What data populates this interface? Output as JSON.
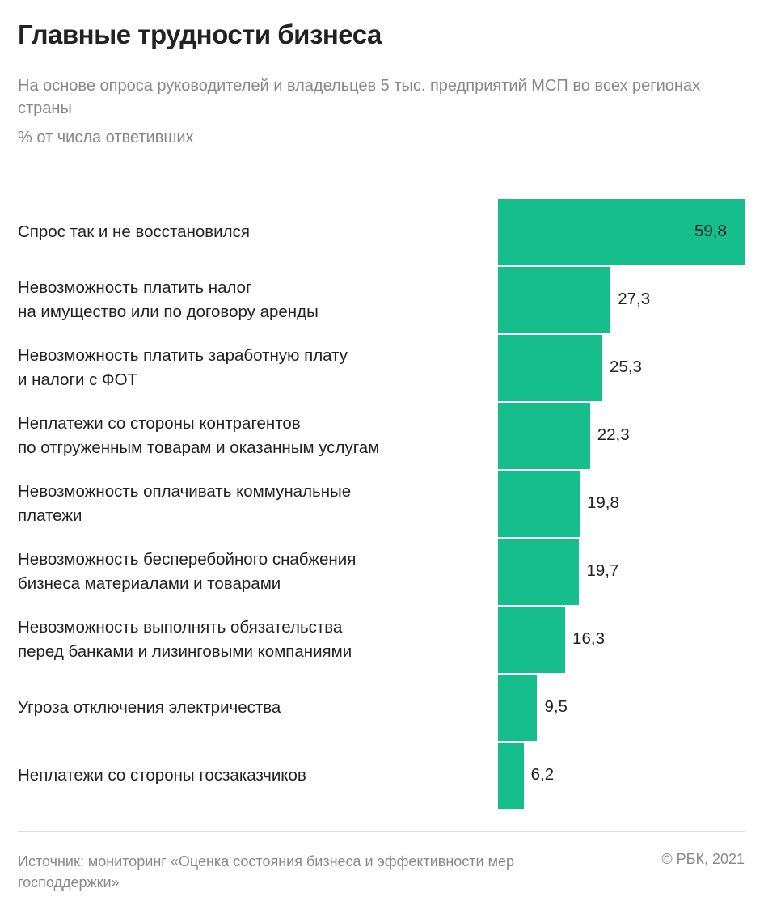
{
  "title": "Главные трудности бизнеса",
  "subtitle": "На основе опроса руководителей и владельцев 5 тыс. предприятий МСП во всех регионах страны",
  "unit": "% от числа ответивших",
  "source": "Источник: мониторинг «Оценка состояния бизнеса и эффективности мер господдержки»",
  "copyright": "© РБК, 2021",
  "colors": {
    "bar": "#15be8a"
  },
  "chart_data": {
    "type": "bar",
    "orientation": "horizontal",
    "title": "Главные трудности бизнеса",
    "xlabel": "% от числа ответивших",
    "xlim": [
      0,
      59.8
    ],
    "categories": [
      "Спрос так и не восстановился",
      "Невозможность платить налог\nна имущество или по договору аренды",
      "Невозможность платить заработную плату\nи налоги с ФОТ",
      "Неплатежи со стороны контрагентов\nпо отгруженным товарам и оказанным услугам",
      "Невозможность оплачивать коммунальные\nплатежи",
      "Невозможность бесперебойного снабжения\nбизнеса материалами и товарами",
      "Невозможность выполнять обязательства\nперед банками и лизинговыми компаниями",
      "Угроза отключения электричества",
      "Неплатежи со стороны госзаказчиков"
    ],
    "values": [
      59.8,
      27.3,
      25.3,
      22.3,
      19.8,
      19.7,
      16.3,
      9.5,
      6.2
    ],
    "value_labels": [
      "59,8",
      "27,3",
      "25,3",
      "22,3",
      "19,8",
      "19,7",
      "16,3",
      "9,5",
      "6,2"
    ]
  }
}
